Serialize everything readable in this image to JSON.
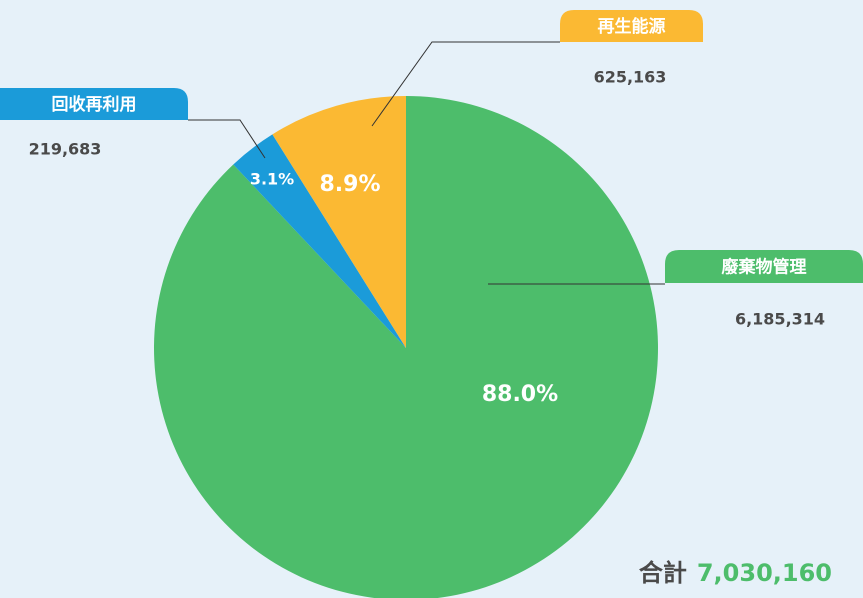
{
  "chart_data": {
    "type": "pie",
    "categories": [
      "廢棄物管理",
      "回收再利用",
      "再生能源"
    ],
    "values": [
      6185314,
      219683,
      625163
    ],
    "value_labels": [
      "6,185,314",
      "219,683",
      "625,163"
    ],
    "percentages": [
      88.0,
      3.1,
      8.9
    ],
    "percentage_labels": [
      "88.0%",
      "3.1%",
      "8.9%"
    ],
    "colors": [
      "#4dbd6b",
      "#1b9bd9",
      "#fbb933"
    ],
    "total_label": "合計",
    "total_value_label": "7,030,160"
  }
}
